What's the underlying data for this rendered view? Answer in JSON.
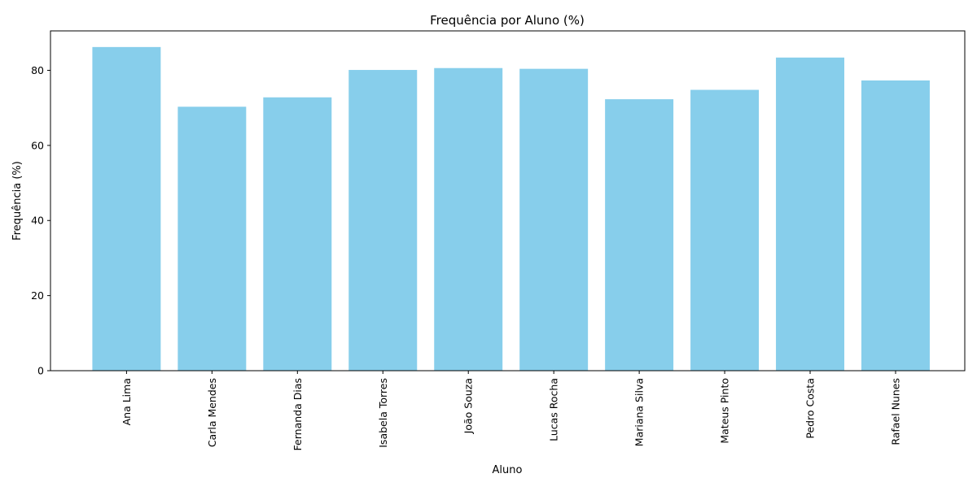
{
  "chart_data": {
    "type": "bar",
    "title": "Frequência por Aluno (%)",
    "xlabel": "Aluno",
    "ylabel": "Frequência (%)",
    "categories": [
      "Ana Lima",
      "Carla Mendes",
      "Fernanda Dias",
      "Isabela Torres",
      "João Souza",
      "Lucas Rocha",
      "Mariana Silva",
      "Mateus Pinto",
      "Pedro Costa",
      "Rafael Nunes"
    ],
    "values": [
      86.2,
      70.3,
      72.8,
      80.1,
      80.6,
      80.4,
      72.3,
      74.8,
      83.4,
      77.3
    ],
    "ylim": [
      0,
      90.5
    ],
    "yticks": [
      0,
      20,
      40,
      60,
      80
    ],
    "grid": false,
    "bar_color": "#87CEEB"
  }
}
